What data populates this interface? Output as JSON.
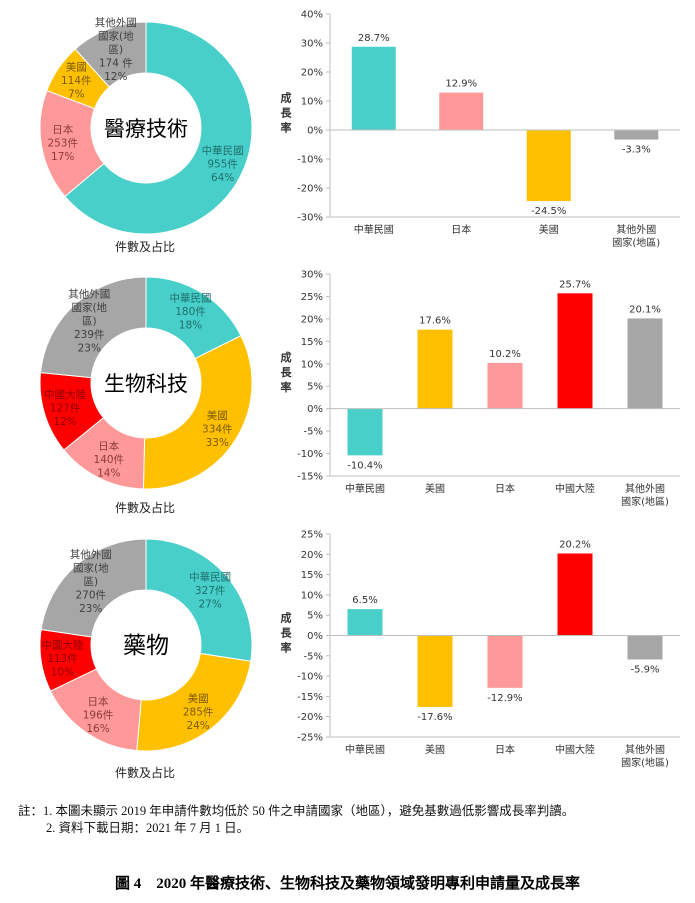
{
  "colors": {
    "中華民國": "#48CFC9",
    "日本": "#FF9999",
    "美國": "#FFC000",
    "中國大陸": "#FF0000",
    "其他外國國家(地區)": "#A6A6A6",
    "axis": "#BFBFBF",
    "label_text": "#404040"
  },
  "pie_caption": "件數及占比",
  "y_axis_label": "成長率",
  "chart_data": [
    {
      "type": "pie",
      "variant": "donut",
      "title": "醫療技術",
      "caption": "件數及占比",
      "slices": [
        {
          "label": "中華民國",
          "count": 955,
          "count_text": "955件",
          "percent": 64,
          "percent_text": "64%"
        },
        {
          "label": "日本",
          "count": 253,
          "count_text": "253件",
          "percent": 17,
          "percent_text": "17%"
        },
        {
          "label": "美國",
          "count": 114,
          "count_text": "114件",
          "percent": 7,
          "percent_text": "7%"
        },
        {
          "label": "其他外國國家(地區)",
          "count": 174,
          "count_text": "174 件",
          "percent": 12,
          "percent_text": "12%"
        }
      ]
    },
    {
      "type": "bar",
      "title": "醫療技術 成長率",
      "ylabel": "成長率",
      "categories": [
        "中華民國",
        "日本",
        "美國",
        "其他外國國家(地區)"
      ],
      "values": [
        28.7,
        12.9,
        -24.5,
        -3.3
      ],
      "value_labels": [
        "28.7%",
        "12.9%",
        "-24.5%",
        "-3.3%"
      ],
      "ylim": [
        -30,
        40
      ],
      "yticks": [
        40,
        30,
        20,
        10,
        0,
        -10,
        -20,
        -30
      ],
      "ytick_labels": [
        "40%",
        "30%",
        "20%",
        "10%",
        "0%",
        "-10%",
        "-20%",
        "-30%"
      ],
      "grid": false
    },
    {
      "type": "pie",
      "variant": "donut",
      "title": "生物科技",
      "caption": "件數及占比",
      "slices": [
        {
          "label": "中華民國",
          "count": 180,
          "count_text": "180件",
          "percent": 18,
          "percent_text": "18%"
        },
        {
          "label": "美國",
          "count": 334,
          "count_text": "334件",
          "percent": 33,
          "percent_text": "33%"
        },
        {
          "label": "日本",
          "count": 140,
          "count_text": "140件",
          "percent": 14,
          "percent_text": "14%"
        },
        {
          "label": "中國大陸",
          "count": 127,
          "count_text": "127件",
          "percent": 12,
          "percent_text": "12%"
        },
        {
          "label": "其他外國國家(地區)",
          "count": 239,
          "count_text": "239件",
          "percent": 23,
          "percent_text": "23%"
        }
      ]
    },
    {
      "type": "bar",
      "title": "生物科技 成長率",
      "ylabel": "成長率",
      "categories": [
        "中華民國",
        "美國",
        "日本",
        "中國大陸",
        "其他外國國家(地區)"
      ],
      "values": [
        -10.4,
        17.6,
        10.2,
        25.7,
        20.1
      ],
      "value_labels": [
        "-10.4%",
        "17.6%",
        "10.2%",
        "25.7%",
        "20.1%"
      ],
      "ylim": [
        -15,
        30
      ],
      "yticks": [
        30,
        25,
        20,
        15,
        10,
        5,
        0,
        -5,
        -10,
        -15
      ],
      "ytick_labels": [
        "30%",
        "25%",
        "20%",
        "15%",
        "10%",
        "5%",
        "0%",
        "-5%",
        "-10%",
        "-15%"
      ],
      "grid": false
    },
    {
      "type": "pie",
      "variant": "donut",
      "title": "藥物",
      "caption": "件數及占比",
      "slices": [
        {
          "label": "中華民國",
          "count": 327,
          "count_text": "327件",
          "percent": 27,
          "percent_text": "27%"
        },
        {
          "label": "美國",
          "count": 285,
          "count_text": "285件",
          "percent": 24,
          "percent_text": "24%"
        },
        {
          "label": "日本",
          "count": 196,
          "count_text": "196件",
          "percent": 16,
          "percent_text": "16%"
        },
        {
          "label": "中國大陸",
          "count": 113,
          "count_text": "113件",
          "percent": 10,
          "percent_text": "10%"
        },
        {
          "label": "其他外國國家(地區)",
          "count": 270,
          "count_text": "270件",
          "percent": 23,
          "percent_text": "23%"
        }
      ]
    },
    {
      "type": "bar",
      "title": "藥物 成長率",
      "ylabel": "成長率",
      "categories": [
        "中華民國",
        "美國",
        "日本",
        "中國大陸",
        "其他外國國家(地區)"
      ],
      "values": [
        6.5,
        -17.6,
        -12.9,
        20.2,
        -5.9
      ],
      "value_labels": [
        "6.5%",
        "-17.6%",
        "-12.9%",
        "20.2%",
        "-5.9%"
      ],
      "ylim": [
        -25,
        25
      ],
      "yticks": [
        25,
        20,
        15,
        10,
        5,
        0,
        -5,
        -10,
        -15,
        -20,
        -25
      ],
      "ytick_labels": [
        "25%",
        "20%",
        "15%",
        "10%",
        "5%",
        "0%",
        "-5%",
        "-10%",
        "-15%",
        "-20%",
        "-25%"
      ],
      "grid": false
    }
  ],
  "notes": {
    "prefix": "註：",
    "items": [
      "1.  本圖未顯示 2019 年申請件數均低於 50 件之申請國家（地區），避免基數過低影響成長率判讀。",
      "2.  資料下載日期：2021 年 7 月 1 日。"
    ]
  },
  "figure_title": "圖 4　2020 年醫療技術、生物科技及藥物領域發明專利申請量及成長率"
}
